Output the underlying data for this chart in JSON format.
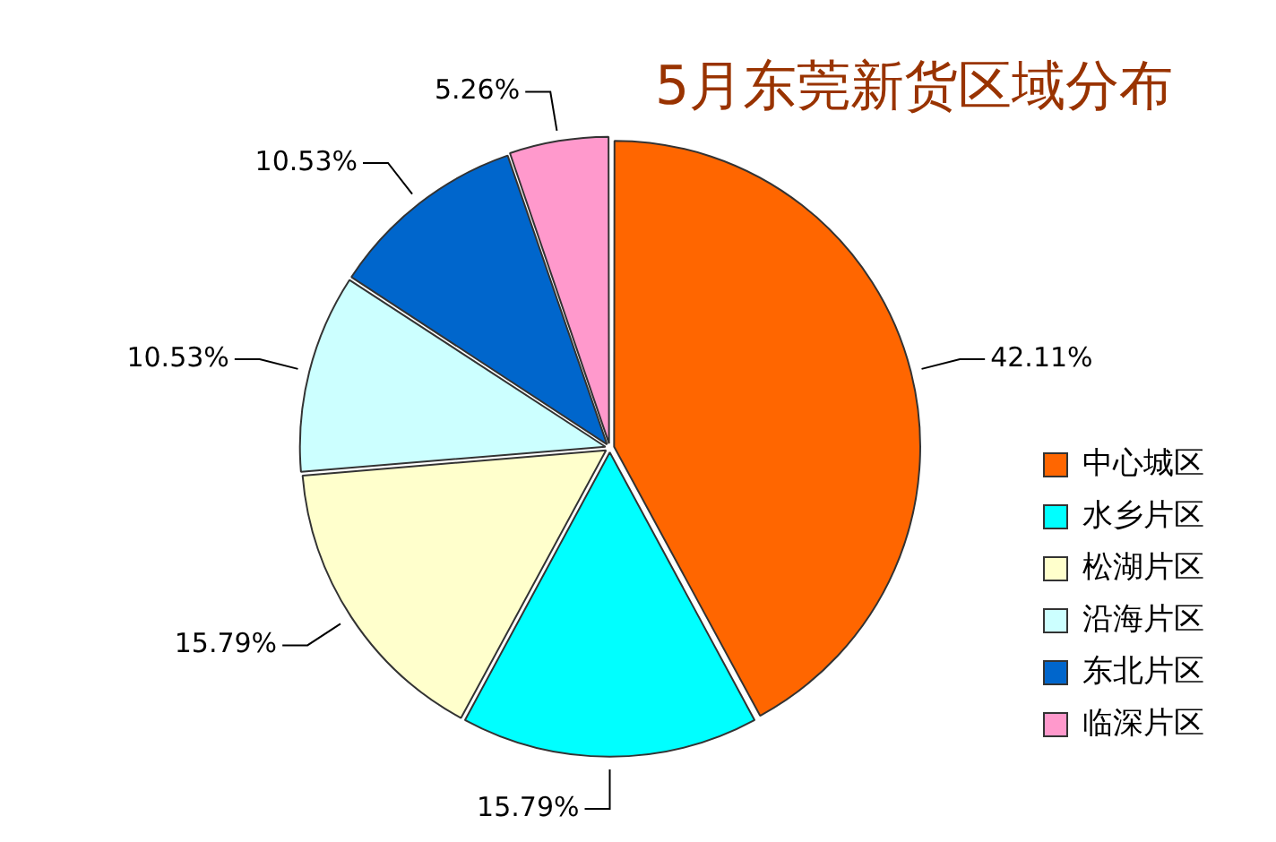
{
  "chart_data": {
    "type": "pie",
    "title": "5月东莞新货区域分布",
    "categories": [
      "中心城区",
      "水乡片区",
      "松湖片区",
      "沿海片区",
      "东北片区",
      "临深片区"
    ],
    "values": [
      42.11,
      15.79,
      15.79,
      10.53,
      10.53,
      5.26
    ],
    "colors": [
      "#ff6600",
      "#00ffff",
      "#ffffcc",
      "#ccffff",
      "#0066cc",
      "#ff99cc"
    ],
    "value_labels": [
      "42.11%",
      "15.79%",
      "15.79%",
      "10.53%",
      "10.53%",
      "5.26%"
    ],
    "legend": "bottom right"
  }
}
